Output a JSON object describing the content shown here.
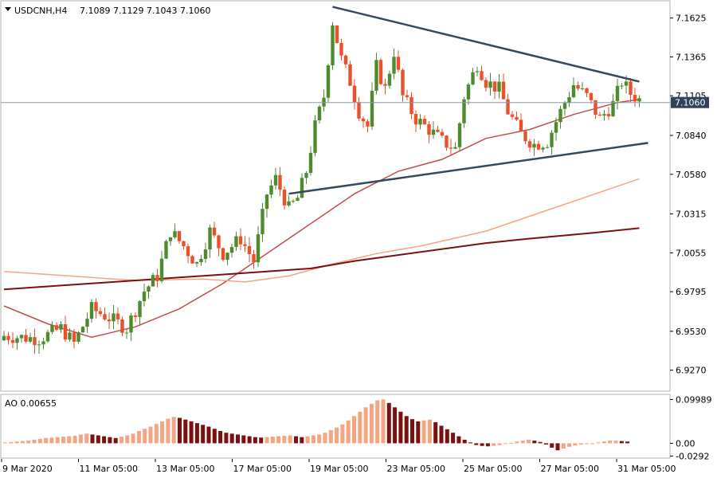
{
  "header": {
    "symbol": "USDCNH,H4",
    "ohlc": "7.1089 7.1129 7.1043 7.1060"
  },
  "colors": {
    "bull": "#4e8b2f",
    "bear": "#e8512a",
    "ma_fast": "#c0504d",
    "ma_mid": "#f4a582",
    "ma_slow": "#7b1010",
    "trendline": "#34495e",
    "ao_up": "#f4a582",
    "ao_down": "#7b1010",
    "price_label_bg": "#31415a",
    "current_line": "#8a9aa8"
  },
  "chart_data": [
    {
      "type": "candlestick",
      "name": "USDCNH,H4",
      "y_axis": {
        "range": [
          6.9135,
          7.1735
        ],
        "ticks": [
          "7.1625",
          "7.1365",
          "7.1105",
          "7.0840",
          "7.0580",
          "7.0315",
          "7.0055",
          "6.9795",
          "6.9530",
          "6.9270"
        ]
      },
      "x_axis": {
        "labels": [
          "9 Mar 2020",
          "11 Mar 05:00",
          "13 Mar 05:00",
          "17 Mar 05:00",
          "19 Mar 05:00",
          "23 Mar 05:00",
          "25 Mar 05:00",
          "27 Mar 05:00",
          "31 Mar 05:00"
        ]
      },
      "current_price": "7.1060",
      "close_path": [
        [
          0,
          6.95
        ],
        [
          8,
          6.948
        ],
        [
          13,
          6.955
        ],
        [
          16,
          6.945
        ],
        [
          20,
          6.968
        ],
        [
          24,
          6.962
        ],
        [
          28,
          6.955
        ],
        [
          32,
          6.98
        ],
        [
          35,
          6.99
        ],
        [
          38,
          7.02
        ],
        [
          41,
          7.01
        ],
        [
          44,
          6.998
        ],
        [
          47,
          7.02
        ],
        [
          50,
          7.005
        ],
        [
          54,
          7.015
        ],
        [
          57,
          7.0
        ],
        [
          60,
          7.045
        ],
        [
          62,
          7.055
        ],
        [
          65,
          7.035
        ],
        [
          67,
          7.042
        ],
        [
          69,
          7.06
        ],
        [
          71,
          7.09
        ],
        [
          73,
          7.11
        ],
        [
          75,
          7.16
        ],
        [
          77,
          7.135
        ],
        [
          79,
          7.12
        ],
        [
          81,
          7.1
        ],
        [
          83,
          7.09
        ],
        [
          85,
          7.13
        ],
        [
          87,
          7.115
        ],
        [
          89,
          7.14
        ],
        [
          91,
          7.11
        ],
        [
          94,
          7.095
        ],
        [
          97,
          7.088
        ],
        [
          100,
          7.08
        ],
        [
          103,
          7.075
        ],
        [
          105,
          7.11
        ],
        [
          108,
          7.132
        ],
        [
          110,
          7.12
        ],
        [
          113,
          7.115
        ],
        [
          115,
          7.1
        ],
        [
          118,
          7.085
        ],
        [
          121,
          7.078
        ],
        [
          124,
          7.08
        ],
        [
          127,
          7.1
        ],
        [
          130,
          7.118
        ],
        [
          133,
          7.11
        ],
        [
          136,
          7.095
        ],
        [
          139,
          7.105
        ],
        [
          141,
          7.12
        ],
        [
          143,
          7.112
        ],
        [
          145,
          7.108
        ]
      ],
      "moving_averages": [
        {
          "id": "ma_fast",
          "points": [
            [
              0,
              6.97
            ],
            [
              10,
              6.958
            ],
            [
              20,
              6.949
            ],
            [
              30,
              6.956
            ],
            [
              40,
              6.968
            ],
            [
              50,
              6.985
            ],
            [
              60,
              7.005
            ],
            [
              70,
              7.025
            ],
            [
              80,
              7.045
            ],
            [
              90,
              7.06
            ],
            [
              100,
              7.068
            ],
            [
              110,
              7.082
            ],
            [
              120,
              7.088
            ],
            [
              130,
              7.098
            ],
            [
              140,
              7.106
            ],
            [
              145,
              7.108
            ]
          ]
        },
        {
          "id": "ma_mid",
          "points": [
            [
              0,
              6.993
            ],
            [
              15,
              6.99
            ],
            [
              30,
              6.987
            ],
            [
              45,
              6.988
            ],
            [
              55,
              6.986
            ],
            [
              65,
              6.99
            ],
            [
              75,
              6.998
            ],
            [
              85,
              7.005
            ],
            [
              95,
              7.01
            ],
            [
              110,
              7.02
            ],
            [
              125,
              7.035
            ],
            [
              135,
              7.045
            ],
            [
              145,
              7.055
            ]
          ]
        },
        {
          "id": "ma_slow",
          "points": [
            [
              0,
              6.981
            ],
            [
              20,
              6.985
            ],
            [
              40,
              6.989
            ],
            [
              60,
              6.993
            ],
            [
              70,
              6.995
            ],
            [
              80,
              7.0
            ],
            [
              90,
              7.004
            ],
            [
              100,
              7.008
            ],
            [
              110,
              7.012
            ],
            [
              120,
              7.015
            ],
            [
              135,
              7.019
            ],
            [
              145,
              7.022
            ]
          ]
        }
      ],
      "trendlines": [
        {
          "from": [
            75,
            7.17
          ],
          "to": [
            145,
            7.12
          ]
        },
        {
          "from": [
            65,
            7.045
          ],
          "to": [
            147,
            7.079
          ]
        }
      ]
    },
    {
      "type": "bar",
      "name": "AO",
      "value_label": "AO 0.00655",
      "y_axis": {
        "range": [
          -0.032,
          0.108
        ],
        "ticks": [
          "0.09989",
          "0.00",
          "-0.0292"
        ]
      },
      "bars": [
        0.002,
        0.003,
        0.004,
        0.005,
        0.006,
        0.008,
        0.01,
        0.012,
        0.013,
        0.014,
        0.015,
        0.016,
        0.017,
        0.02,
        0.022,
        0.02,
        0.018,
        0.016,
        0.014,
        0.012,
        0.015,
        0.018,
        0.022,
        0.028,
        0.033,
        0.038,
        0.044,
        0.05,
        0.056,
        0.06,
        0.058,
        0.054,
        0.05,
        0.046,
        0.042,
        0.038,
        0.033,
        0.028,
        0.024,
        0.022,
        0.02,
        0.018,
        0.016,
        0.014,
        0.013,
        0.014,
        0.015,
        0.016,
        0.017,
        0.018,
        0.016,
        0.014,
        0.016,
        0.018,
        0.02,
        0.024,
        0.03,
        0.036,
        0.043,
        0.052,
        0.062,
        0.072,
        0.082,
        0.09,
        0.098,
        0.1,
        0.092,
        0.082,
        0.072,
        0.062,
        0.055,
        0.05,
        0.052,
        0.054,
        0.048,
        0.04,
        0.032,
        0.024,
        0.016,
        0.008,
        0.002,
        -0.004,
        -0.006,
        -0.007,
        -0.006,
        -0.004,
        -0.002,
        0.001,
        0.004,
        0.006,
        0.008,
        0.006,
        0.003,
        -0.003,
        -0.01,
        -0.016,
        -0.012,
        -0.008,
        -0.005,
        -0.003,
        -0.002,
        -0.001,
        0.002,
        0.004,
        0.006,
        0.006,
        0.005,
        0.004
      ]
    }
  ]
}
